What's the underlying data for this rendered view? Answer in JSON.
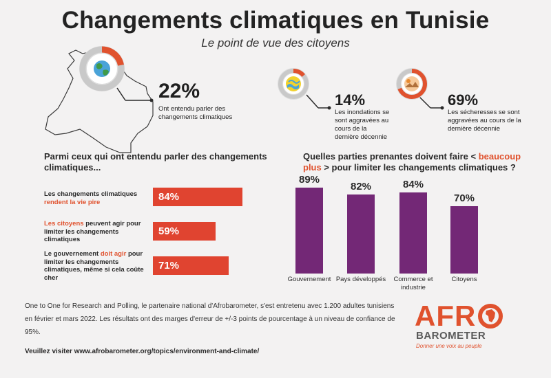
{
  "header": {
    "title": "Changements climatiques en Tunisie",
    "subtitle": "Le point de vue des citoyens"
  },
  "stats": [
    {
      "value": "22%",
      "text": "Ont entendu parler des changements climatiques",
      "icon": "globe-icon",
      "fraction": 0.22
    },
    {
      "value": "14%",
      "text": "Les inondations se sont aggravées au cours de la dernière décennie",
      "icon": "flood-icon",
      "fraction": 0.14
    },
    {
      "value": "69%",
      "text": "Les sécheresses se sont aggravées au cours de la dernière décennie",
      "icon": "drought-icon",
      "fraction": 0.69
    }
  ],
  "left_section": {
    "heading": "Parmi ceux qui ont entendu parler des changements climatiques...",
    "items": [
      {
        "pre": "Les changements climatiques ",
        "highlight": "rendent la vie pire",
        "post": "",
        "value": "84%",
        "fraction": 0.84
      },
      {
        "pre": "",
        "highlight": "Les citoyens",
        "post": " peuvent agir pour limiter les changements climatiques",
        "value": "59%",
        "fraction": 0.59
      },
      {
        "pre": "Le gouvernement ",
        "highlight": "doit agir",
        "post": " pour limiter les changements climatiques, même si cela coûte cher",
        "value": "71%",
        "fraction": 0.71
      }
    ]
  },
  "right_section": {
    "heading_pre": "Quelles parties prenantes doivent faire < ",
    "heading_highlight": "beaucoup plus",
    "heading_post": " > pour limiter les changements climatiques ?"
  },
  "chart_data": {
    "type": "bar",
    "categories": [
      "Gouvernement",
      "Pays développés",
      "Commerce et industrie",
      "Citoyens"
    ],
    "values": [
      89,
      82,
      84,
      70
    ],
    "value_labels": [
      "89%",
      "82%",
      "84%",
      "70%"
    ],
    "title": "Quelles parties prenantes doivent faire < beaucoup plus > pour limiter les changements climatiques ?",
    "ylim": [
      0,
      100
    ],
    "color": "#732876"
  },
  "footer": {
    "text": "One to One for Research and Polling, le partenaire national d'Afrobarometer, s'est entretenu avec 1.200 adultes tunisiens en février et mars 2022. Les résultats ont des marges d'erreur de +/-3 points de pourcentage à un niveau de confiance de 95%.",
    "link": "Veuillez visiter www.afrobarometer.org/topics/environment-and-climate/"
  },
  "logo": {
    "afro": "AFR",
    "barometer": "BAROMETER",
    "tagline": "Donner une voix au peuple"
  },
  "colors": {
    "accent": "#e0522e",
    "bar_red": "#e04430",
    "bar_purple": "#732876",
    "ring_grey": "#c9c9c9"
  }
}
